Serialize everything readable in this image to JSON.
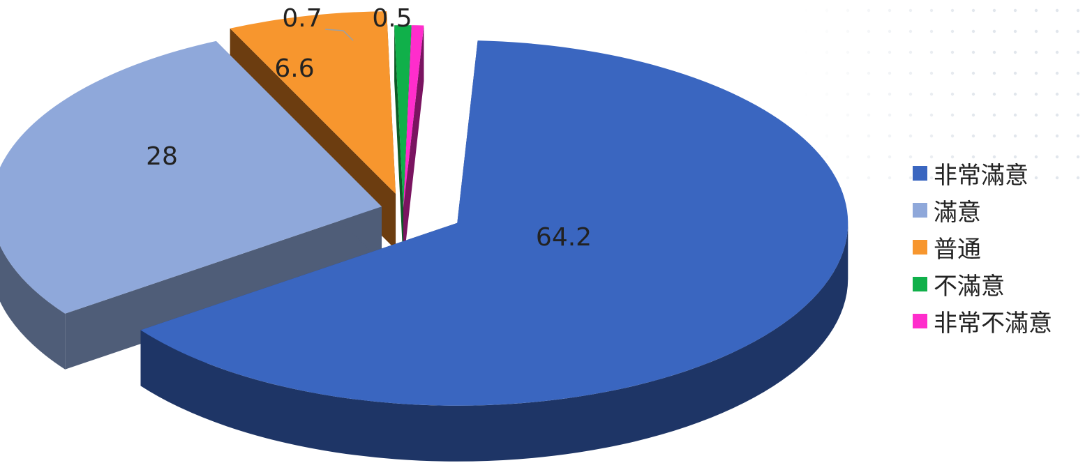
{
  "chart_data": {
    "type": "pie",
    "title": "",
    "categories": [
      "非常滿意",
      "滿意",
      "普通",
      "不滿意",
      "非常不滿意"
    ],
    "values": [
      64.2,
      28,
      6.6,
      0.7,
      0.5
    ],
    "value_labels": [
      "64.2",
      "28",
      "6.6",
      "0.7",
      "0.5"
    ],
    "colors": [
      "#3A66C0",
      "#8FA8DA",
      "#F7962E",
      "#10B04A",
      "#FF2DCC"
    ],
    "side_colors": [
      "#1E3566",
      "#4F5D78",
      "#6C3D10",
      "#0D5A25",
      "#7A1460"
    ],
    "legend_position": "right",
    "style": "3d-exploded"
  }
}
